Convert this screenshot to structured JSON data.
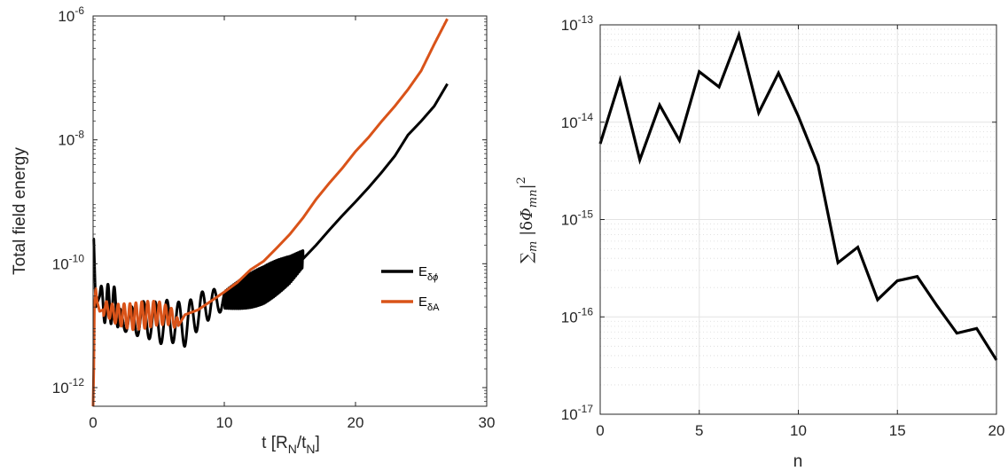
{
  "colors": {
    "black": "#000000",
    "orange": "#D95319",
    "axis": "#262626",
    "grid": "#e6e6e6"
  },
  "chart_data": [
    {
      "type": "line",
      "xlabel": "t [R_N/t_N]",
      "ylabel": "Total field energy",
      "yscale": "log",
      "xlim": [
        0,
        30
      ],
      "ylim": [
        5e-13,
        1e-06
      ],
      "grid": false,
      "legend": "right",
      "xticks": [
        "0",
        "10",
        "20",
        "30"
      ],
      "yticks": [
        {
          "base": "10",
          "exp": "-12",
          "value": 1e-12
        },
        {
          "base": "10",
          "exp": "-10",
          "value": 1e-10
        },
        {
          "base": "10",
          "exp": "-8",
          "value": 1e-08
        },
        {
          "base": "10",
          "exp": "-6",
          "value": 1e-06
        }
      ],
      "series": [
        {
          "name": "E_δφ",
          "color": "#000000",
          "x": [
            0,
            0.05,
            0.2,
            0.5,
            1.0,
            1.5,
            2.0,
            3.0,
            4.0,
            5.0,
            6.0,
            7.0,
            8.0,
            9.0,
            10.0,
            11.0,
            12.0,
            13.0,
            14.0,
            15.0,
            16.0,
            17.0,
            18.0,
            19.0,
            20.0,
            21.0,
            22.0,
            23.0,
            24.0,
            25.0,
            26.0,
            27.0
          ],
          "y": [
            2.5e-10,
            2.5e-10,
            2e-11,
            3e-11,
            2e-11,
            2.5e-11,
            1.3e-11,
            1.2e-11,
            1.3e-11,
            1.1e-11,
            1.2e-11,
            1e-11,
            1.7e-11,
            2.3e-11,
            2.6e-11,
            3.1e-11,
            3.7e-11,
            4.5e-11,
            6e-11,
            8e-11,
            1.2e-10,
            2e-10,
            3.5e-10,
            6e-10,
            1e-09,
            1.7e-09,
            3e-09,
            5.5e-09,
            1.2e-08,
            2e-08,
            3.5e-08,
            8e-08
          ],
          "oscillations": [
            {
              "t_from": 0.5,
              "t_to": 2,
              "period": 0.5,
              "amp_dec": 0.35
            },
            {
              "t_from": 2,
              "t_to": 10,
              "period": 0.9,
              "amp_dec": 0.35
            },
            {
              "t_from": 10,
              "t_to": 16,
              "period": 0.12,
              "amp_dec": 0.3
            }
          ]
        },
        {
          "name": "E_δA",
          "color": "#D95319",
          "x": [
            0,
            0.05,
            0.1,
            0.2,
            0.3,
            0.5,
            1.0,
            1.5,
            2.0,
            3.0,
            4.0,
            5.0,
            6.0,
            6.5,
            7.0,
            8.0,
            9.0,
            10.0,
            11.0,
            12.0,
            13.0,
            14.0,
            15.0,
            16.0,
            17.0,
            18.0,
            19.0,
            20.0,
            21.0,
            22.0,
            23.0,
            24.0,
            25.0,
            26.0,
            27.0
          ],
          "y": [
            5e-13,
            2e-12,
            2e-11,
            4e-11,
            2.5e-11,
            1.7e-11,
            1.9e-11,
            1.6e-11,
            1.5e-11,
            1.4e-11,
            1.5e-11,
            1.6e-11,
            1.4e-11,
            1e-11,
            1.5e-11,
            1.8e-11,
            2.5e-11,
            3.5e-11,
            5e-11,
            8e-11,
            1.1e-10,
            1.8e-10,
            3e-10,
            5.5e-10,
            1.1e-09,
            2e-09,
            3.5e-09,
            6.5e-09,
            1.1e-08,
            2e-08,
            3.5e-08,
            6.5e-08,
            1.3e-07,
            3.5e-07,
            9e-07
          ],
          "oscillations": [
            {
              "t_from": 0.8,
              "t_to": 6.5,
              "period": 0.45,
              "amp_dec": 0.22
            }
          ]
        }
      ]
    },
    {
      "type": "line",
      "xlabel": "n",
      "ylabel": "Σ_m |δΦ_mn|^2",
      "yscale": "log",
      "xlim": [
        0,
        20
      ],
      "ylim": [
        1e-17,
        1e-13
      ],
      "grid": true,
      "xticks": [
        "0",
        "5",
        "10",
        "15",
        "20"
      ],
      "yticks": [
        {
          "base": "10",
          "exp": "-17",
          "value": 1e-17
        },
        {
          "base": "10",
          "exp": "-16",
          "value": 1e-16
        },
        {
          "base": "10",
          "exp": "-15",
          "value": 1e-15
        },
        {
          "base": "10",
          "exp": "-14",
          "value": 1e-14
        },
        {
          "base": "10",
          "exp": "-13",
          "value": 1e-13
        }
      ],
      "series": [
        {
          "color": "#000000",
          "x": [
            0,
            1,
            2,
            3,
            4,
            5,
            6,
            7,
            8,
            9,
            10,
            11,
            12,
            13,
            14,
            15,
            16,
            17,
            18,
            19,
            20
          ],
          "y": [
            6e-15,
            2.7e-14,
            4.1e-15,
            1.5e-14,
            6.5e-15,
            3.3e-14,
            2.3e-14,
            7.9e-14,
            1.25e-14,
            3.2e-14,
            1.15e-14,
            3.6e-15,
            3.6e-16,
            5.2e-16,
            1.5e-16,
            2.35e-16,
            2.6e-16,
            1.3e-16,
            6.8e-17,
            7.6e-17,
            3.6e-17
          ]
        }
      ]
    }
  ]
}
